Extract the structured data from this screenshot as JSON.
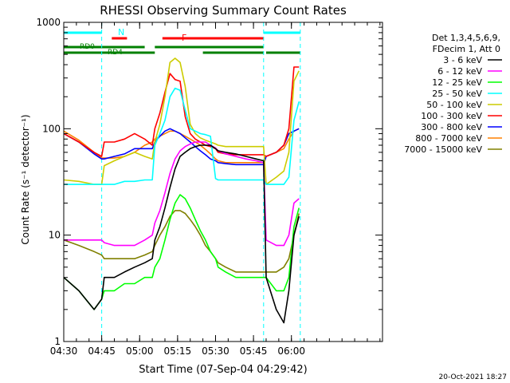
{
  "chart_data": {
    "type": "line",
    "title": "RHESSI Observing Summary Count Rates",
    "xlabel": "Start Time (07-Sep-04 04:29:42)",
    "ylabel": "Count Rate (s⁻¹ detector⁻¹)",
    "x_range_min": [
      270,
      396
    ],
    "ylim": [
      1,
      1000
    ],
    "yscale": "log",
    "x_tick_labels": [
      "04:30",
      "04:45",
      "05:00",
      "05:15",
      "05:30",
      "05:45",
      "06:00"
    ],
    "x_tick_min": [
      270,
      285,
      300,
      315,
      330,
      345,
      360
    ],
    "y_tick_labels": [
      "1",
      "10",
      "100",
      "1000"
    ],
    "y_tick_values": [
      1,
      10,
      100,
      1000
    ],
    "legend_header": [
      "Det 1,3,4,5,6,9,",
      "FDecim 1, Att 0"
    ],
    "legend_placement": "right-outside",
    "x": [
      270,
      276,
      282,
      285,
      286,
      290,
      294,
      298,
      302,
      305,
      306,
      308,
      310,
      312,
      314,
      316,
      318,
      320,
      322,
      324,
      326,
      328,
      330,
      331,
      334,
      338,
      342,
      346,
      349,
      350,
      354,
      357,
      359,
      361,
      363
    ],
    "series": [
      {
        "name": "3 - 6 keV",
        "color": "#000000",
        "values": [
          4,
          3,
          2,
          2.5,
          4,
          4,
          4.5,
          5,
          5.5,
          6,
          9,
          12,
          18,
          28,
          42,
          55,
          60,
          65,
          68,
          70,
          70,
          70,
          65,
          62,
          60,
          58,
          55,
          52,
          50,
          4,
          2,
          1.5,
          3,
          10,
          15
        ]
      },
      {
        "name": "6 - 12 keV",
        "color": "#ff00ff",
        "values": [
          9,
          9,
          9,
          9,
          8.5,
          8,
          8,
          8,
          9,
          10,
          13,
          17,
          25,
          38,
          52,
          62,
          68,
          72,
          75,
          75,
          75,
          70,
          66,
          62,
          58,
          55,
          52,
          50,
          48,
          9,
          8,
          8,
          10,
          20,
          22
        ]
      },
      {
        "name": "12 - 25 keV",
        "color": "#00ff00",
        "values": [
          4,
          3,
          2,
          2.5,
          3,
          3,
          3.5,
          3.5,
          4,
          4,
          5,
          6,
          9,
          14,
          20,
          24,
          22,
          18,
          14,
          11,
          9,
          7,
          6,
          5,
          4.5,
          4,
          4,
          4,
          4,
          4,
          3,
          3,
          4,
          12,
          18
        ]
      },
      {
        "name": "25 - 50 keV",
        "color": "#00ffff",
        "values": [
          30,
          30,
          30,
          30,
          30,
          30,
          32,
          32,
          33,
          33,
          70,
          90,
          120,
          200,
          240,
          230,
          150,
          100,
          95,
          90,
          88,
          85,
          34,
          33,
          33,
          33,
          33,
          33,
          33,
          30,
          30,
          30,
          35,
          120,
          180
        ]
      },
      {
        "name": "50 - 100 keV",
        "color": "#cccc00",
        "values": [
          33,
          32,
          30,
          30,
          45,
          50,
          55,
          60,
          55,
          52,
          75,
          110,
          200,
          420,
          460,
          420,
          250,
          110,
          90,
          82,
          78,
          75,
          72,
          70,
          68,
          68,
          68,
          68,
          68,
          30,
          35,
          40,
          60,
          280,
          350
        ]
      },
      {
        "name": "100 - 300 keV",
        "color": "#ff0000",
        "values": [
          90,
          75,
          60,
          55,
          75,
          75,
          80,
          90,
          80,
          70,
          100,
          140,
          220,
          330,
          290,
          280,
          130,
          90,
          80,
          75,
          70,
          68,
          65,
          60,
          58,
          57,
          57,
          57,
          57,
          55,
          60,
          70,
          100,
          380,
          380
        ]
      },
      {
        "name": "300 - 800 keV",
        "color": "#0000ff",
        "values": [
          90,
          75,
          58,
          52,
          52,
          55,
          58,
          65,
          65,
          65,
          75,
          85,
          95,
          100,
          95,
          90,
          82,
          75,
          68,
          62,
          57,
          52,
          50,
          48,
          47,
          46,
          46,
          46,
          46,
          55,
          60,
          70,
          90,
          95,
          100
        ]
      },
      {
        "name": "800 - 7000 keV",
        "color": "#ff8000",
        "values": [
          95,
          78,
          60,
          53,
          53,
          53,
          55,
          60,
          70,
          75,
          80,
          85,
          90,
          95,
          95,
          90,
          85,
          80,
          75,
          70,
          64,
          58,
          52,
          50,
          48,
          48,
          48,
          48,
          48,
          55,
          60,
          65,
          80,
          95,
          100
        ]
      },
      {
        "name": "7000 - 15000 keV",
        "color": "#808000",
        "values": [
          9,
          8,
          7,
          6.5,
          6,
          6,
          6,
          6,
          6.5,
          7,
          8,
          10,
          12,
          15,
          17,
          17,
          16,
          14,
          12,
          10,
          8,
          7,
          6,
          5.5,
          5,
          4.5,
          4.5,
          4.5,
          4.5,
          4.5,
          4.5,
          5,
          6,
          10,
          16
        ]
      }
    ],
    "annotations": [
      {
        "text": "N",
        "color": "#00ffff"
      },
      {
        "text": "F",
        "color": "#ff0000"
      },
      {
        "text": "RD0",
        "color": "#008000"
      },
      {
        "text": "RD4",
        "color": "#008000"
      }
    ],
    "night_min": [
      [
        270,
        285
      ],
      [
        349,
        363.5
      ]
    ],
    "flare_min": [
      [
        289,
        295
      ],
      [
        309,
        349
      ]
    ],
    "rd0_min": [
      [
        270,
        302
      ],
      [
        306,
        349
      ]
    ],
    "rd4_min": [
      [
        270,
        306
      ],
      [
        325,
        349
      ],
      [
        350,
        363.5
      ]
    ],
    "footer_date": "20-Oct-2021 18:27"
  }
}
